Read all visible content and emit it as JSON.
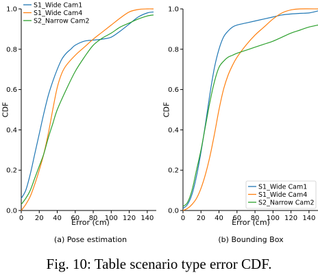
{
  "caption": "Fig. 10: Table scenario type error CDF.",
  "colors": {
    "blue": "#1f77b4",
    "orange": "#ff7f0e",
    "green": "#2ca02c"
  },
  "chart_data": [
    {
      "type": "line",
      "subtitle": "(a) Pose estimation",
      "xlabel": "Error (cm)",
      "ylabel": "CDF",
      "xlim": [
        0,
        150
      ],
      "ylim": [
        0,
        1.0
      ],
      "xticks": [
        "0",
        "20",
        "40",
        "60",
        "80",
        "100",
        "120",
        "140"
      ],
      "yticks": [
        "0.0",
        "0.2",
        "0.4",
        "0.6",
        "0.8",
        "1.0"
      ],
      "legend_position": "top-left",
      "series": [
        {
          "name": "S1_Wide Cam1",
          "color": "blue",
          "points": [
            [
              0,
              0.06
            ],
            [
              5,
              0.1
            ],
            [
              10,
              0.18
            ],
            [
              15,
              0.28
            ],
            [
              20,
              0.38
            ],
            [
              25,
              0.48
            ],
            [
              30,
              0.57
            ],
            [
              35,
              0.64
            ],
            [
              40,
              0.7
            ],
            [
              45,
              0.75
            ],
            [
              50,
              0.78
            ],
            [
              55,
              0.8
            ],
            [
              60,
              0.82
            ],
            [
              70,
              0.84
            ],
            [
              80,
              0.845
            ],
            [
              90,
              0.85
            ],
            [
              100,
              0.86
            ],
            [
              110,
              0.89
            ],
            [
              120,
              0.925
            ],
            [
              130,
              0.96
            ],
            [
              140,
              0.98
            ],
            [
              147,
              0.985
            ]
          ]
        },
        {
          "name": "S1_Wide Cam4",
          "color": "orange",
          "points": [
            [
              0,
              0.0
            ],
            [
              5,
              0.03
            ],
            [
              10,
              0.07
            ],
            [
              15,
              0.13
            ],
            [
              20,
              0.2
            ],
            [
              25,
              0.28
            ],
            [
              30,
              0.38
            ],
            [
              35,
              0.5
            ],
            [
              40,
              0.61
            ],
            [
              45,
              0.68
            ],
            [
              50,
              0.72
            ],
            [
              60,
              0.77
            ],
            [
              70,
              0.81
            ],
            [
              80,
              0.85
            ],
            [
              90,
              0.885
            ],
            [
              100,
              0.92
            ],
            [
              110,
              0.955
            ],
            [
              120,
              0.985
            ],
            [
              130,
              0.997
            ],
            [
              140,
              1.0
            ],
            [
              147,
              1.0
            ]
          ]
        },
        {
          "name": "S2_Narrow Cam2",
          "color": "green",
          "points": [
            [
              0,
              0.03
            ],
            [
              5,
              0.06
            ],
            [
              10,
              0.1
            ],
            [
              15,
              0.16
            ],
            [
              20,
              0.22
            ],
            [
              25,
              0.28
            ],
            [
              30,
              0.36
            ],
            [
              35,
              0.43
            ],
            [
              40,
              0.5
            ],
            [
              50,
              0.6
            ],
            [
              60,
              0.69
            ],
            [
              70,
              0.76
            ],
            [
              80,
              0.82
            ],
            [
              90,
              0.855
            ],
            [
              100,
              0.88
            ],
            [
              110,
              0.91
            ],
            [
              120,
              0.93
            ],
            [
              130,
              0.95
            ],
            [
              140,
              0.965
            ],
            [
              147,
              0.97
            ]
          ]
        }
      ]
    },
    {
      "type": "line",
      "subtitle": "(b) Bounding Box",
      "xlabel": "Error (cm)",
      "ylabel": "CDF",
      "xlim": [
        0,
        150
      ],
      "ylim": [
        0,
        1.0
      ],
      "xticks": [
        "0",
        "20",
        "40",
        "60",
        "80",
        "100",
        "120",
        "140"
      ],
      "yticks": [
        "0.0",
        "0.2",
        "0.4",
        "0.6",
        "0.8",
        "1.0"
      ],
      "legend_position": "bottom-right",
      "series": [
        {
          "name": "S1_Wide Cam1",
          "color": "blue",
          "points": [
            [
              0,
              0.01
            ],
            [
              5,
              0.03
            ],
            [
              10,
              0.08
            ],
            [
              15,
              0.17
            ],
            [
              20,
              0.29
            ],
            [
              25,
              0.43
            ],
            [
              30,
              0.58
            ],
            [
              35,
              0.71
            ],
            [
              40,
              0.8
            ],
            [
              45,
              0.86
            ],
            [
              50,
              0.89
            ],
            [
              55,
              0.91
            ],
            [
              60,
              0.92
            ],
            [
              70,
              0.93
            ],
            [
              80,
              0.94
            ],
            [
              90,
              0.95
            ],
            [
              100,
              0.96
            ],
            [
              110,
              0.97
            ],
            [
              120,
              0.975
            ],
            [
              130,
              0.978
            ],
            [
              140,
              0.98
            ],
            [
              150,
              0.99
            ]
          ]
        },
        {
          "name": "S1_Wide Cam4",
          "color": "orange",
          "points": [
            [
              0,
              0.0
            ],
            [
              5,
              0.01
            ],
            [
              10,
              0.03
            ],
            [
              15,
              0.06
            ],
            [
              20,
              0.11
            ],
            [
              25,
              0.18
            ],
            [
              30,
              0.27
            ],
            [
              35,
              0.38
            ],
            [
              40,
              0.5
            ],
            [
              45,
              0.6
            ],
            [
              50,
              0.67
            ],
            [
              55,
              0.72
            ],
            [
              60,
              0.76
            ],
            [
              70,
              0.82
            ],
            [
              80,
              0.87
            ],
            [
              90,
              0.91
            ],
            [
              100,
              0.95
            ],
            [
              110,
              0.98
            ],
            [
              120,
              0.995
            ],
            [
              130,
              1.0
            ],
            [
              150,
              1.0
            ]
          ]
        },
        {
          "name": "S2_Narrow Cam2",
          "color": "green",
          "points": [
            [
              0,
              0.02
            ],
            [
              5,
              0.04
            ],
            [
              10,
              0.1
            ],
            [
              15,
              0.2
            ],
            [
              20,
              0.3
            ],
            [
              25,
              0.42
            ],
            [
              30,
              0.54
            ],
            [
              35,
              0.64
            ],
            [
              40,
              0.71
            ],
            [
              45,
              0.74
            ],
            [
              50,
              0.76
            ],
            [
              55,
              0.77
            ],
            [
              60,
              0.78
            ],
            [
              70,
              0.795
            ],
            [
              80,
              0.81
            ],
            [
              90,
              0.825
            ],
            [
              100,
              0.84
            ],
            [
              110,
              0.86
            ],
            [
              120,
              0.88
            ],
            [
              130,
              0.895
            ],
            [
              140,
              0.91
            ],
            [
              150,
              0.92
            ]
          ]
        }
      ]
    }
  ]
}
